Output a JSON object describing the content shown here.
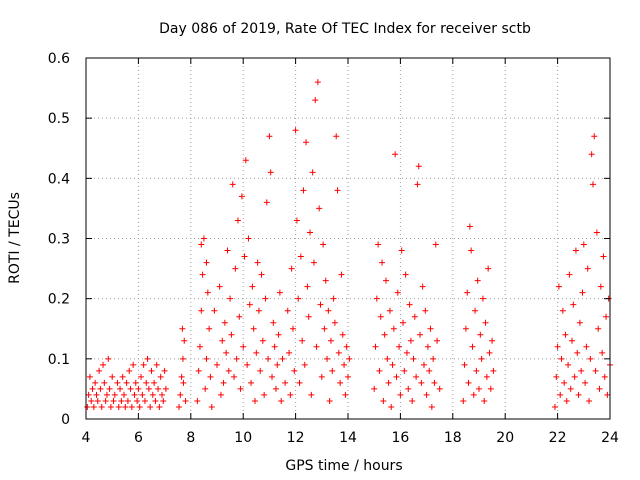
{
  "chart_data": {
    "type": "scatter",
    "title": "Day 086 of 2019, Rate Of TEC Index for receiver sctb",
    "xlabel": "GPS time / hours",
    "ylabel": "ROTI / TECUs",
    "xlim": [
      4,
      24
    ],
    "ylim": [
      0,
      0.6
    ],
    "grid": true,
    "marker": "+",
    "color": "#ff0000",
    "x_ticks": [
      "4",
      "6",
      "8",
      "10",
      "12",
      "14",
      "16",
      "18",
      "20",
      "22",
      "24"
    ],
    "y_ticks": [
      "0",
      "0.1",
      "0.2",
      "0.3",
      "0.4",
      "0.5",
      "0.6"
    ],
    "series": [
      {
        "name": "ROTI",
        "points": [
          [
            4.05,
            0.02
          ],
          [
            4.1,
            0.04
          ],
          [
            4.15,
            0.07
          ],
          [
            4.2,
            0.03
          ],
          [
            4.25,
            0.05
          ],
          [
            4.3,
            0.02
          ],
          [
            4.35,
            0.06
          ],
          [
            4.4,
            0.04
          ],
          [
            4.45,
            0.03
          ],
          [
            4.5,
            0.08
          ],
          [
            4.55,
            0.05
          ],
          [
            4.6,
            0.02
          ],
          [
            4.65,
            0.09
          ],
          [
            4.7,
            0.06
          ],
          [
            4.75,
            0.03
          ],
          [
            4.8,
            0.04
          ],
          [
            4.85,
            0.1
          ],
          [
            4.9,
            0.05
          ],
          [
            4.95,
            0.02
          ],
          [
            5.0,
            0.07
          ],
          [
            5.05,
            0.03
          ],
          [
            5.1,
            0.04
          ],
          [
            5.2,
            0.06
          ],
          [
            5.25,
            0.02
          ],
          [
            5.3,
            0.05
          ],
          [
            5.35,
            0.03
          ],
          [
            5.4,
            0.07
          ],
          [
            5.45,
            0.04
          ],
          [
            5.5,
            0.02
          ],
          [
            5.55,
            0.06
          ],
          [
            5.6,
            0.03
          ],
          [
            5.65,
            0.08
          ],
          [
            5.7,
            0.05
          ],
          [
            5.75,
            0.02
          ],
          [
            5.8,
            0.09
          ],
          [
            5.85,
            0.04
          ],
          [
            5.9,
            0.06
          ],
          [
            5.95,
            0.03
          ],
          [
            6.0,
            0.05
          ],
          [
            6.05,
            0.02
          ],
          [
            6.1,
            0.07
          ],
          [
            6.15,
            0.04
          ],
          [
            6.2,
            0.09
          ],
          [
            6.25,
            0.03
          ],
          [
            6.3,
            0.06
          ],
          [
            6.35,
            0.1
          ],
          [
            6.4,
            0.05
          ],
          [
            6.45,
            0.02
          ],
          [
            6.5,
            0.08
          ],
          [
            6.55,
            0.04
          ],
          [
            6.6,
            0.06
          ],
          [
            6.65,
            0.03
          ],
          [
            6.7,
            0.09
          ],
          [
            6.75,
            0.05
          ],
          [
            6.8,
            0.02
          ],
          [
            6.85,
            0.07
          ],
          [
            6.9,
            0.04
          ],
          [
            6.95,
            0.03
          ],
          [
            7.0,
            0.08
          ],
          [
            7.05,
            0.05
          ],
          [
            7.55,
            0.02
          ],
          [
            7.6,
            0.04
          ],
          [
            7.65,
            0.07
          ],
          [
            7.7,
            0.1
          ],
          [
            7.75,
            0.13
          ],
          [
            7.8,
            0.03
          ],
          [
            7.68,
            0.15
          ],
          [
            7.72,
            0.06
          ],
          [
            8.25,
            0.03
          ],
          [
            8.3,
            0.08
          ],
          [
            8.35,
            0.12
          ],
          [
            8.4,
            0.18
          ],
          [
            8.45,
            0.24
          ],
          [
            8.5,
            0.3
          ],
          [
            8.55,
            0.05
          ],
          [
            8.6,
            0.1
          ],
          [
            8.65,
            0.21
          ],
          [
            8.7,
            0.15
          ],
          [
            8.75,
            0.07
          ],
          [
            8.8,
            0.02
          ],
          [
            8.4,
            0.29
          ],
          [
            8.6,
            0.26
          ],
          [
            8.9,
            0.18
          ],
          [
            9.0,
            0.09
          ],
          [
            9.1,
            0.22
          ],
          [
            9.15,
            0.04
          ],
          [
            9.2,
            0.13
          ],
          [
            9.25,
            0.06
          ],
          [
            9.3,
            0.16
          ],
          [
            9.35,
            0.11
          ],
          [
            9.4,
            0.28
          ],
          [
            9.45,
            0.08
          ],
          [
            9.5,
            0.2
          ],
          [
            9.55,
            0.14
          ],
          [
            9.6,
            0.39
          ],
          [
            9.65,
            0.07
          ],
          [
            9.7,
            0.25
          ],
          [
            9.75,
            0.1
          ],
          [
            9.8,
            0.33
          ],
          [
            9.85,
            0.17
          ],
          [
            9.9,
            0.05
          ],
          [
            9.95,
            0.37
          ],
          [
            10.0,
            0.12
          ],
          [
            10.05,
            0.27
          ],
          [
            10.1,
            0.43
          ],
          [
            10.15,
            0.09
          ],
          [
            10.2,
            0.3
          ],
          [
            10.25,
            0.19
          ],
          [
            10.3,
            0.06
          ],
          [
            10.35,
            0.22
          ],
          [
            10.4,
            0.15
          ],
          [
            10.45,
            0.03
          ],
          [
            10.5,
            0.11
          ],
          [
            10.55,
            0.26
          ],
          [
            10.6,
            0.18
          ],
          [
            10.65,
            0.08
          ],
          [
            10.7,
            0.24
          ],
          [
            10.75,
            0.13
          ],
          [
            10.8,
            0.04
          ],
          [
            10.85,
            0.2
          ],
          [
            10.9,
            0.36
          ],
          [
            10.95,
            0.1
          ],
          [
            11.0,
            0.47
          ],
          [
            11.05,
            0.41
          ],
          [
            11.1,
            0.07
          ],
          [
            11.15,
            0.16
          ],
          [
            11.2,
            0.12
          ],
          [
            11.25,
            0.05
          ],
          [
            11.3,
            0.09
          ],
          [
            11.35,
            0.14
          ],
          [
            11.4,
            0.21
          ],
          [
            11.45,
            0.03
          ],
          [
            11.5,
            0.1
          ],
          [
            11.6,
            0.06
          ],
          [
            11.7,
            0.18
          ],
          [
            11.75,
            0.11
          ],
          [
            11.8,
            0.04
          ],
          [
            11.85,
            0.25
          ],
          [
            11.9,
            0.15
          ],
          [
            11.95,
            0.08
          ],
          [
            12.0,
            0.48
          ],
          [
            12.05,
            0.33
          ],
          [
            12.1,
            0.2
          ],
          [
            12.15,
            0.06
          ],
          [
            12.2,
            0.27
          ],
          [
            12.25,
            0.13
          ],
          [
            12.3,
            0.38
          ],
          [
            12.35,
            0.09
          ],
          [
            12.4,
            0.46
          ],
          [
            12.45,
            0.22
          ],
          [
            12.5,
            0.17
          ],
          [
            12.55,
            0.31
          ],
          [
            12.6,
            0.04
          ],
          [
            12.65,
            0.41
          ],
          [
            12.7,
            0.26
          ],
          [
            12.75,
            0.53
          ],
          [
            12.8,
            0.12
          ],
          [
            12.85,
            0.56
          ],
          [
            12.9,
            0.35
          ],
          [
            12.95,
            0.19
          ],
          [
            13.0,
            0.07
          ],
          [
            13.05,
            0.29
          ],
          [
            13.1,
            0.15
          ],
          [
            13.15,
            0.23
          ],
          [
            13.2,
            0.1
          ],
          [
            13.25,
            0.18
          ],
          [
            13.3,
            0.03
          ],
          [
            13.35,
            0.13
          ],
          [
            13.4,
            0.08
          ],
          [
            13.45,
            0.2
          ],
          [
            13.5,
            0.16
          ],
          [
            13.55,
            0.47
          ],
          [
            13.6,
            0.38
          ],
          [
            13.65,
            0.11
          ],
          [
            13.7,
            0.06
          ],
          [
            13.75,
            0.24
          ],
          [
            13.8,
            0.14
          ],
          [
            13.85,
            0.09
          ],
          [
            13.9,
            0.04
          ],
          [
            13.95,
            0.12
          ],
          [
            14.0,
            0.07
          ],
          [
            14.05,
            0.1
          ],
          [
            15.0,
            0.05
          ],
          [
            15.05,
            0.12
          ],
          [
            15.1,
            0.2
          ],
          [
            15.15,
            0.29
          ],
          [
            15.2,
            0.08
          ],
          [
            15.25,
            0.17
          ],
          [
            15.3,
            0.26
          ],
          [
            15.35,
            0.03
          ],
          [
            15.4,
            0.14
          ],
          [
            15.45,
            0.23
          ],
          [
            15.5,
            0.1
          ],
          [
            15.55,
            0.06
          ],
          [
            15.6,
            0.18
          ],
          [
            15.65,
            0.02
          ],
          [
            15.7,
            0.09
          ],
          [
            15.75,
            0.15
          ],
          [
            15.8,
            0.44
          ],
          [
            15.85,
            0.07
          ],
          [
            15.9,
            0.21
          ],
          [
            15.95,
            0.12
          ],
          [
            16.0,
            0.04
          ],
          [
            16.05,
            0.28
          ],
          [
            16.1,
            0.16
          ],
          [
            16.15,
            0.08
          ],
          [
            16.2,
            0.24
          ],
          [
            16.25,
            0.11
          ],
          [
            16.3,
            0.05
          ],
          [
            16.35,
            0.19
          ],
          [
            16.4,
            0.13
          ],
          [
            16.45,
            0.03
          ],
          [
            16.5,
            0.1
          ],
          [
            16.55,
            0.17
          ],
          [
            16.6,
            0.07
          ],
          [
            16.65,
            0.39
          ],
          [
            16.7,
            0.42
          ],
          [
            16.75,
            0.14
          ],
          [
            16.8,
            0.06
          ],
          [
            16.85,
            0.22
          ],
          [
            16.9,
            0.09
          ],
          [
            16.95,
            0.18
          ],
          [
            17.0,
            0.04
          ],
          [
            17.05,
            0.12
          ],
          [
            17.1,
            0.08
          ],
          [
            17.15,
            0.15
          ],
          [
            17.2,
            0.02
          ],
          [
            17.25,
            0.1
          ],
          [
            17.3,
            0.06
          ],
          [
            17.35,
            0.29
          ],
          [
            17.4,
            0.13
          ],
          [
            17.5,
            0.05
          ],
          [
            18.4,
            0.03
          ],
          [
            18.45,
            0.09
          ],
          [
            18.5,
            0.15
          ],
          [
            18.55,
            0.21
          ],
          [
            18.6,
            0.06
          ],
          [
            18.65,
            0.32
          ],
          [
            18.7,
            0.28
          ],
          [
            18.75,
            0.12
          ],
          [
            18.8,
            0.04
          ],
          [
            18.85,
            0.18
          ],
          [
            18.9,
            0.08
          ],
          [
            18.95,
            0.23
          ],
          [
            19.0,
            0.05
          ],
          [
            19.05,
            0.14
          ],
          [
            19.1,
            0.1
          ],
          [
            19.15,
            0.2
          ],
          [
            19.2,
            0.03
          ],
          [
            19.25,
            0.16
          ],
          [
            19.3,
            0.07
          ],
          [
            19.35,
            0.25
          ],
          [
            19.4,
            0.11
          ],
          [
            19.45,
            0.05
          ],
          [
            19.5,
            0.13
          ],
          [
            19.55,
            0.08
          ],
          [
            21.9,
            0.02
          ],
          [
            21.95,
            0.07
          ],
          [
            22.0,
            0.12
          ],
          [
            22.05,
            0.22
          ],
          [
            22.1,
            0.04
          ],
          [
            22.15,
            0.1
          ],
          [
            22.2,
            0.18
          ],
          [
            22.25,
            0.06
          ],
          [
            22.3,
            0.14
          ],
          [
            22.35,
            0.03
          ],
          [
            22.4,
            0.09
          ],
          [
            22.45,
            0.24
          ],
          [
            22.5,
            0.05
          ],
          [
            22.55,
            0.13
          ],
          [
            22.6,
            0.19
          ],
          [
            22.65,
            0.07
          ],
          [
            22.7,
            0.28
          ],
          [
            22.75,
            0.11
          ],
          [
            22.8,
            0.04
          ],
          [
            22.85,
            0.16
          ],
          [
            22.9,
            0.08
          ],
          [
            22.95,
            0.21
          ],
          [
            23.0,
            0.29
          ],
          [
            23.05,
            0.06
          ],
          [
            23.1,
            0.12
          ],
          [
            23.15,
            0.25
          ],
          [
            23.2,
            0.03
          ],
          [
            23.25,
            0.1
          ],
          [
            23.3,
            0.44
          ],
          [
            23.35,
            0.39
          ],
          [
            23.4,
            0.47
          ],
          [
            23.45,
            0.08
          ],
          [
            23.5,
            0.31
          ],
          [
            23.55,
            0.15
          ],
          [
            23.6,
            0.05
          ],
          [
            23.65,
            0.22
          ],
          [
            23.7,
            0.11
          ],
          [
            23.75,
            0.27
          ],
          [
            23.8,
            0.07
          ],
          [
            23.85,
            0.17
          ],
          [
            23.9,
            0.04
          ],
          [
            23.95,
            0.2
          ],
          [
            24.0,
            0.09
          ]
        ]
      }
    ]
  }
}
